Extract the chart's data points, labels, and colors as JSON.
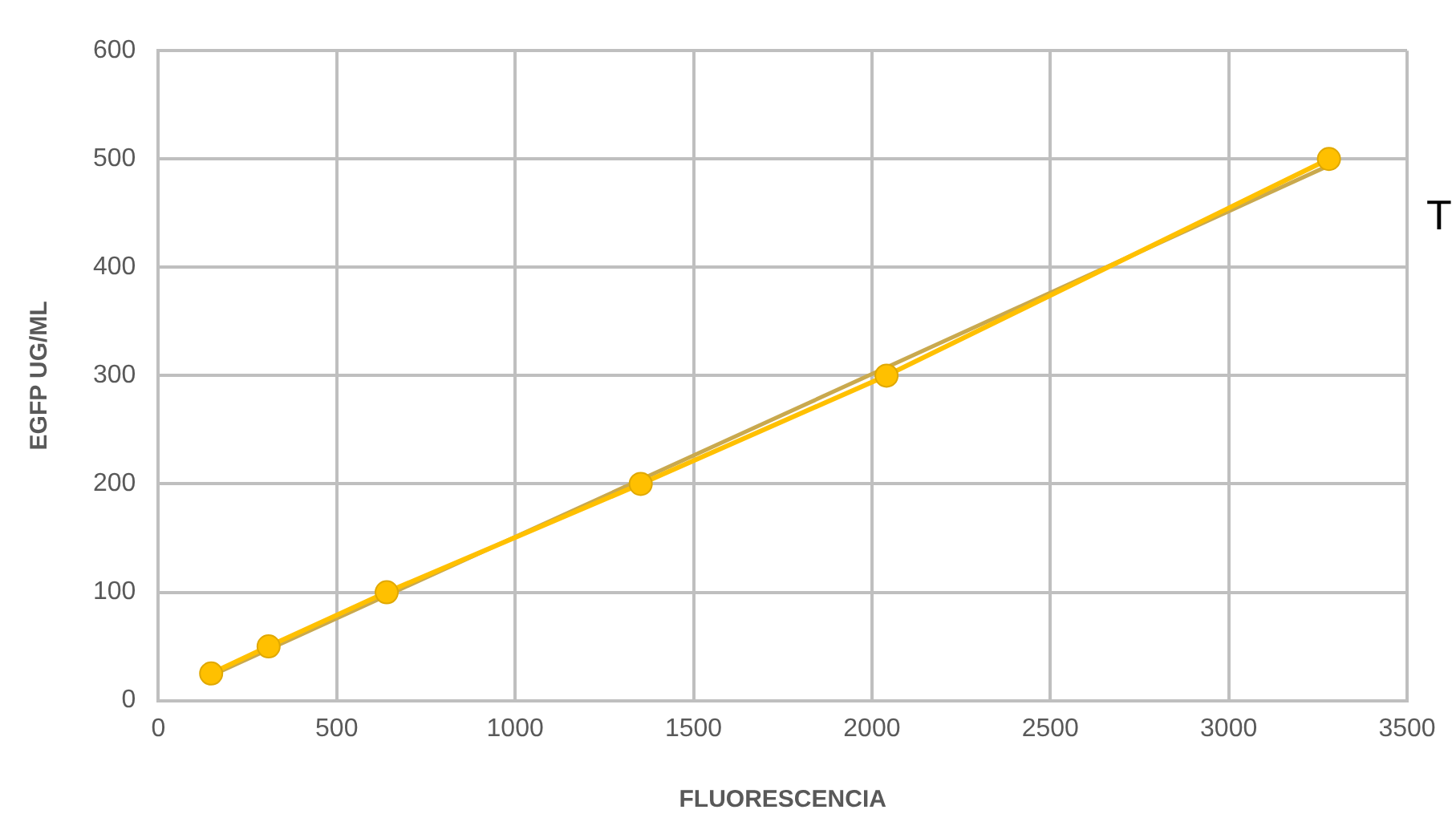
{
  "chart_data": {
    "type": "line",
    "xlabel": "FLUORESCENCIA",
    "ylabel": "EGFP UG/ML",
    "series": [
      {
        "color": "#ffc000",
        "x": [
          148,
          309,
          640,
          1352,
          2041,
          3281
        ],
        "values": [
          25,
          50,
          100,
          200,
          300,
          500
        ],
        "marker": "circle"
      },
      {
        "type": "line",
        "color": "#c9a94e",
        "x": [
          148,
          3281
        ],
        "values": [
          23,
          494
        ],
        "marker": "none"
      }
    ],
    "xlim": [
      0,
      3500
    ],
    "xticks": [
      0,
      500,
      1000,
      1500,
      2000,
      2500,
      3000,
      3500
    ],
    "ylim": [
      0,
      600
    ],
    "yticks": [
      0,
      100,
      200,
      300,
      400,
      500,
      600
    ],
    "grid": true,
    "legend": false,
    "annotations": [
      "T"
    ]
  }
}
